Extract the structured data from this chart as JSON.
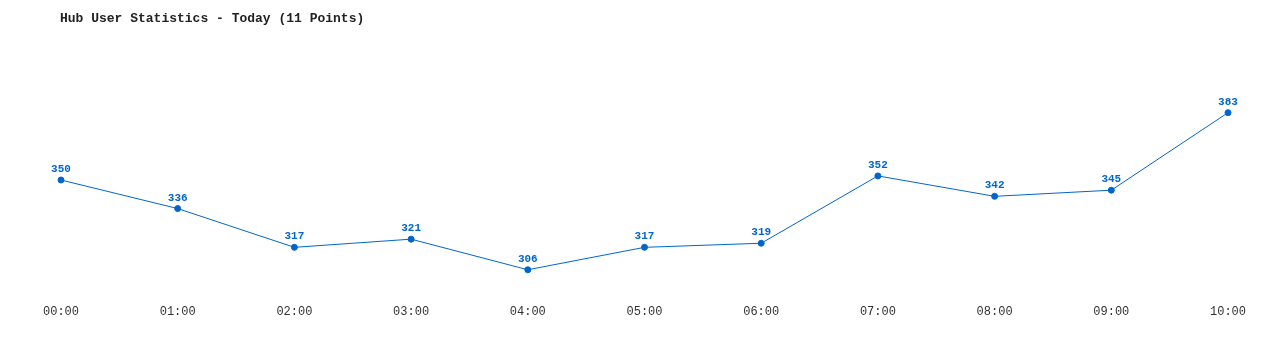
{
  "chart_data": {
    "type": "line",
    "title": "Hub User Statistics - Today (11 Points)",
    "categories": [
      "00:00",
      "01:00",
      "02:00",
      "03:00",
      "04:00",
      "05:00",
      "06:00",
      "07:00",
      "08:00",
      "09:00",
      "10:00"
    ],
    "series": [
      {
        "color": "#0066cc",
        "values": [
          350,
          336,
          317,
          321,
          306,
          317,
          319,
          352,
          342,
          345,
          383
        ]
      }
    ],
    "data_labels": true,
    "marker": "circle",
    "line_style": "solid",
    "tick_labels": "x"
  }
}
